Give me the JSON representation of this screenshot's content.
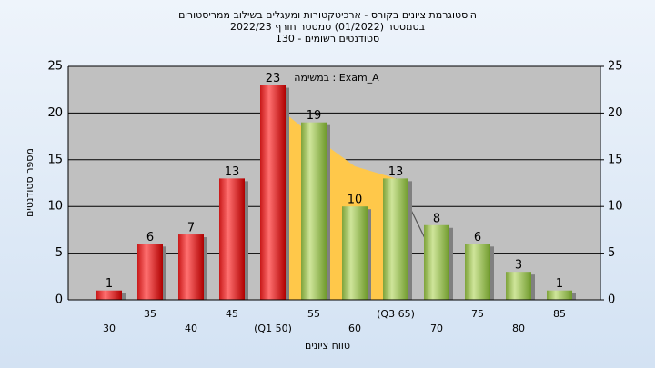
{
  "chart_data": {
    "type": "bar",
    "title": [
      "היסטוגרמת ציונים בקורס - ארכיטקטורות ומעגלים בשילוב ממריסטורים",
      "בסמסטר  (01/2022)  סמסטר חורף 2022/23",
      "סטודנטים רשומים - 130"
    ],
    "annotation": "במשימה : Exam_A",
    "x_label": "טווח ציונים",
    "y_label": "מספר סטודנטים",
    "categories": [
      "30",
      "35",
      "40",
      "45",
      "(Q1 50)",
      "55",
      "60",
      "(Q3 65)",
      "70",
      "75",
      "80",
      "85"
    ],
    "values": [
      1,
      6,
      7,
      13,
      23,
      19,
      10,
      13,
      8,
      6,
      3,
      1
    ],
    "colors": [
      "red",
      "red",
      "red",
      "red",
      "red",
      "green",
      "green",
      "green",
      "green",
      "green",
      "green",
      "green"
    ],
    "overlays": [
      {
        "type": "area",
        "color": "#ffc84a",
        "values": [
          null,
          null,
          null,
          null,
          21,
          17.5,
          14.3,
          13,
          null,
          null,
          null,
          null
        ]
      },
      {
        "type": "line",
        "color": "#555555",
        "values": [
          null,
          null,
          null,
          null,
          null,
          null,
          null,
          13,
          4,
          null,
          null,
          null
        ]
      }
    ],
    "ylim": [
      0,
      25
    ],
    "yticks": [
      0,
      5,
      10,
      15,
      20,
      25
    ],
    "y2lim": [
      0,
      25
    ],
    "y2ticks": [
      0,
      5,
      10,
      15,
      20,
      25
    ],
    "grid": true
  }
}
